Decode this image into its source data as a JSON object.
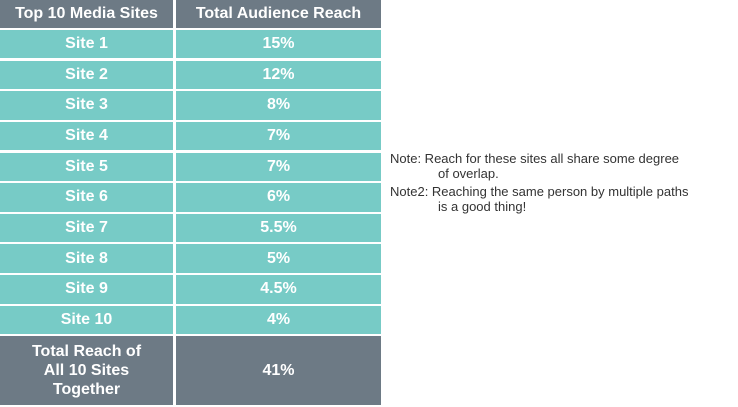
{
  "chart_data": {
    "type": "table",
    "columns": [
      "Top 10 Media Sites",
      "Total Audience Reach"
    ],
    "rows": [
      {
        "site": "Site 1",
        "reach": "15%"
      },
      {
        "site": "Site 2",
        "reach": "12%"
      },
      {
        "site": "Site 3",
        "reach": "8%"
      },
      {
        "site": "Site 4",
        "reach": "7%"
      },
      {
        "site": "Site 5",
        "reach": "7%"
      },
      {
        "site": "Site 6",
        "reach": "6%"
      },
      {
        "site": "Site 7",
        "reach": "5.5%"
      },
      {
        "site": "Site 8",
        "reach": "5%"
      },
      {
        "site": "Site 9",
        "reach": "4.5%"
      },
      {
        "site": "Site 10",
        "reach": "4%"
      }
    ],
    "total": {
      "label_line1": "Total Reach of",
      "label_line2": "All 10 Sites",
      "label_line3": "Together",
      "reach": "41%"
    },
    "colors": {
      "header": "#6d7a85",
      "row": "#77cbc6",
      "total": "#6d7a85"
    }
  },
  "notes": {
    "note1_line1": "Note: Reach for these sites all share some degree",
    "note1_line2": "of overlap.",
    "note2_line1": "Note2: Reaching the same person by multiple paths",
    "note2_line2": "is a good thing!"
  }
}
